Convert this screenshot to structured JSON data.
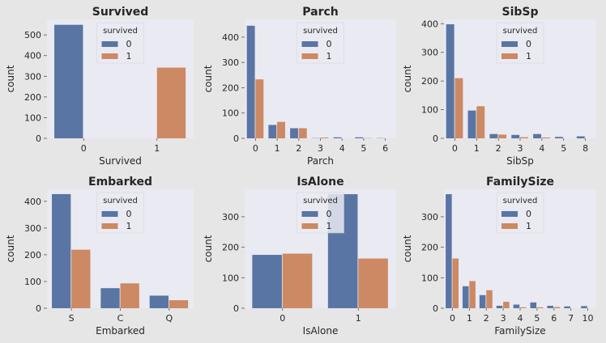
{
  "colors": {
    "series0": "#5975a4",
    "series1": "#cc8963",
    "panel_bg": "#eaeaf2",
    "figure_bg": "#e6e6e6"
  },
  "legend_title": "survived",
  "chart_data": [
    {
      "type": "bar",
      "title": "Survived",
      "xlabel": "Survived",
      "ylabel": "count",
      "categories": [
        "0",
        "1"
      ],
      "ylim": [
        0,
        575
      ],
      "yticks": [
        0,
        100,
        200,
        300,
        400,
        500
      ],
      "legend_position": "top-center",
      "grid": false,
      "series": [
        {
          "name": "0",
          "values": [
            549,
            0
          ]
        },
        {
          "name": "1",
          "values": [
            0,
            342
          ]
        }
      ]
    },
    {
      "type": "bar",
      "title": "Parch",
      "xlabel": "Parch",
      "ylabel": "count",
      "categories": [
        "0",
        "1",
        "2",
        "3",
        "4",
        "5",
        "6"
      ],
      "ylim": [
        0,
        470
      ],
      "yticks": [
        0,
        100,
        200,
        300,
        400
      ],
      "legend_position": "top-center",
      "grid": false,
      "series": [
        {
          "name": "0",
          "values": [
            445,
            53,
            40,
            1,
            4,
            4,
            1
          ]
        },
        {
          "name": "1",
          "values": [
            233,
            65,
            40,
            3,
            0,
            1,
            0
          ]
        }
      ]
    },
    {
      "type": "bar",
      "title": "SibSp",
      "xlabel": "SibSp",
      "ylabel": "count",
      "categories": [
        "0",
        "1",
        "2",
        "3",
        "4",
        "5",
        "8"
      ],
      "ylim": [
        0,
        415
      ],
      "yticks": [
        0,
        100,
        200,
        300,
        400
      ],
      "legend_position": "top-center",
      "grid": false,
      "series": [
        {
          "name": "0",
          "values": [
            398,
            97,
            15,
            12,
            15,
            5,
            7
          ]
        },
        {
          "name": "1",
          "values": [
            210,
            112,
            13,
            4,
            3,
            0,
            0
          ]
        }
      ]
    },
    {
      "type": "bar",
      "title": "Embarked",
      "xlabel": "Embarked",
      "ylabel": "count",
      "categories": [
        "S",
        "C",
        "Q"
      ],
      "ylim": [
        0,
        445
      ],
      "yticks": [
        0,
        100,
        200,
        300,
        400
      ],
      "legend_position": "top-center",
      "grid": false,
      "series": [
        {
          "name": "0",
          "values": [
            427,
            75,
            47
          ]
        },
        {
          "name": "1",
          "values": [
            219,
            93,
            30
          ]
        }
      ]
    },
    {
      "type": "bar",
      "title": "IsAlone",
      "xlabel": "IsAlone",
      "ylabel": "count",
      "categories": [
        "0",
        "1"
      ],
      "ylim": [
        0,
        390
      ],
      "yticks": [
        0,
        100,
        200,
        300
      ],
      "legend_position": "top-center",
      "grid": false,
      "series": [
        {
          "name": "0",
          "values": [
            175,
            374
          ]
        },
        {
          "name": "1",
          "values": [
            179,
            163
          ]
        }
      ]
    },
    {
      "type": "bar",
      "title": "FamilySize",
      "xlabel": "FamilySize",
      "ylabel": "count",
      "categories": [
        "0",
        "1",
        "2",
        "3",
        "4",
        "5",
        "6",
        "7",
        "10"
      ],
      "ylim": [
        0,
        390
      ],
      "yticks": [
        0,
        100,
        200,
        300
      ],
      "legend_position": "top-center",
      "grid": false,
      "series": [
        {
          "name": "0",
          "values": [
            374,
            72,
            43,
            8,
            12,
            19,
            8,
            6,
            7
          ]
        },
        {
          "name": "1",
          "values": [
            163,
            89,
            59,
            21,
            3,
            3,
            4,
            0,
            0
          ]
        }
      ]
    }
  ]
}
